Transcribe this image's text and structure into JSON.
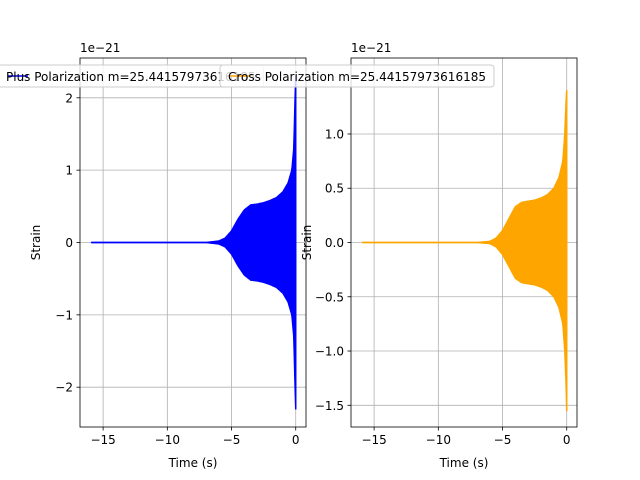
{
  "chart_data": [
    {
      "type": "line",
      "legend_label": "Plus Polarization m=25.44157973616185",
      "legend_position": "upper",
      "color": "#0000ff",
      "xlabel": "Time (s)",
      "ylabel": "Strain",
      "exponent_label": "1e−21",
      "xlim": [
        -16.8,
        0.8
      ],
      "ylim": [
        -2.55,
        2.55
      ],
      "xticks": [
        -15,
        -10,
        -5,
        0
      ],
      "xtick_labels": [
        "−15",
        "−10",
        "−5",
        "0"
      ],
      "yticks": [
        -2,
        -1,
        0,
        1,
        2
      ],
      "ytick_labels": [
        "−2",
        "−1",
        "0",
        "1",
        "2"
      ],
      "grid": true,
      "envelope": {
        "t": [
          -15.9,
          -7.0,
          -6.0,
          -5.5,
          -5.0,
          -4.5,
          -4.0,
          -3.5,
          -3.0,
          -2.5,
          -2.0,
          -1.5,
          -1.0,
          -0.6,
          -0.3,
          -0.15,
          -0.05,
          0.0
        ],
        "amp": [
          0.0,
          0.0,
          0.02,
          0.06,
          0.16,
          0.32,
          0.45,
          0.52,
          0.53,
          0.55,
          0.58,
          0.62,
          0.7,
          0.82,
          1.0,
          1.3,
          2.0,
          2.3
        ],
        "lower_amp": [
          0.0,
          0.0,
          0.02,
          0.06,
          0.16,
          0.32,
          0.45,
          0.52,
          0.53,
          0.55,
          0.58,
          0.62,
          0.7,
          0.82,
          1.0,
          1.3,
          2.0,
          2.3
        ]
      }
    },
    {
      "type": "line",
      "legend_label": "Cross Polarization m=25.44157973616185",
      "legend_position": "upper",
      "color": "#ffa500",
      "xlabel": "Time (s)",
      "ylabel": "Strain",
      "exponent_label": "1e−21",
      "xlim": [
        -16.8,
        0.8
      ],
      "ylim": [
        -1.7,
        1.7
      ],
      "xticks": [
        -15,
        -10,
        -5,
        0
      ],
      "xtick_labels": [
        "−15",
        "−10",
        "−5",
        "0"
      ],
      "yticks": [
        -1.5,
        -1.0,
        -0.5,
        0.0,
        0.5,
        1.0
      ],
      "ytick_labels": [
        "−1.5",
        "−1.0",
        "−0.5",
        "0.0",
        "0.5",
        "1.0"
      ],
      "grid": true,
      "envelope": {
        "t": [
          -15.9,
          -7.0,
          -6.0,
          -5.5,
          -5.0,
          -4.5,
          -4.0,
          -3.5,
          -3.0,
          -2.5,
          -2.0,
          -1.5,
          -1.0,
          -0.6,
          -0.3,
          -0.15,
          -0.05,
          0.0
        ],
        "amp": [
          0.0,
          0.0,
          0.01,
          0.04,
          0.11,
          0.22,
          0.33,
          0.37,
          0.38,
          0.39,
          0.41,
          0.44,
          0.5,
          0.6,
          0.75,
          1.0,
          1.3,
          1.4
        ],
        "lower_amp": [
          0.0,
          0.0,
          0.01,
          0.04,
          0.11,
          0.22,
          0.33,
          0.37,
          0.38,
          0.39,
          0.41,
          0.44,
          0.5,
          0.6,
          0.75,
          1.0,
          1.3,
          1.55
        ]
      }
    }
  ]
}
